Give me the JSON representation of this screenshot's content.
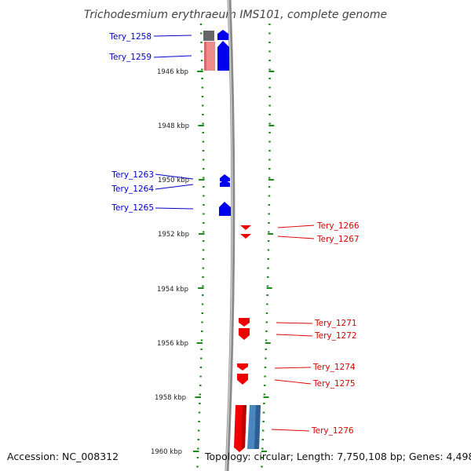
{
  "title": "Trichodesmium erythraeum IMS101, complete genome",
  "footer": {
    "accession": "Accession: NC_008312",
    "topology": "Topology: circular; Length: 7,750,108 bp; Genes: 4,498"
  },
  "colors": {
    "backbone": "#8a8a8a",
    "tick": "#1a8a1a",
    "forward_label": "#0000cc",
    "reverse_label": "#dd0000",
    "forward_gene": "#0000ee",
    "reverse_gene": "#ee0000",
    "gray_gene": "#666666",
    "pink_gene": "#ee8a8a",
    "steel_gene": "#4a86c0"
  },
  "kbp_labels": [
    "1946 kbp",
    "1948 kbp",
    "1950 kbp",
    "1952 kbp",
    "1954 kbp",
    "1956 kbp",
    "1958 kbp",
    "1960 kbp"
  ],
  "genes": [
    {
      "label": "Tery_1258",
      "strand": "forward"
    },
    {
      "label": "Tery_1259",
      "strand": "forward"
    },
    {
      "label": "Tery_1263",
      "strand": "forward"
    },
    {
      "label": "Tery_1264",
      "strand": "forward"
    },
    {
      "label": "Tery_1265",
      "strand": "forward"
    },
    {
      "label": "Tery_1266",
      "strand": "reverse"
    },
    {
      "label": "Tery_1267",
      "strand": "reverse"
    },
    {
      "label": "Tery_1271",
      "strand": "reverse"
    },
    {
      "label": "Tery_1272",
      "strand": "reverse"
    },
    {
      "label": "Tery_1274",
      "strand": "reverse"
    },
    {
      "label": "Tery_1275",
      "strand": "reverse"
    },
    {
      "label": "Tery_1276",
      "strand": "reverse"
    }
  ]
}
